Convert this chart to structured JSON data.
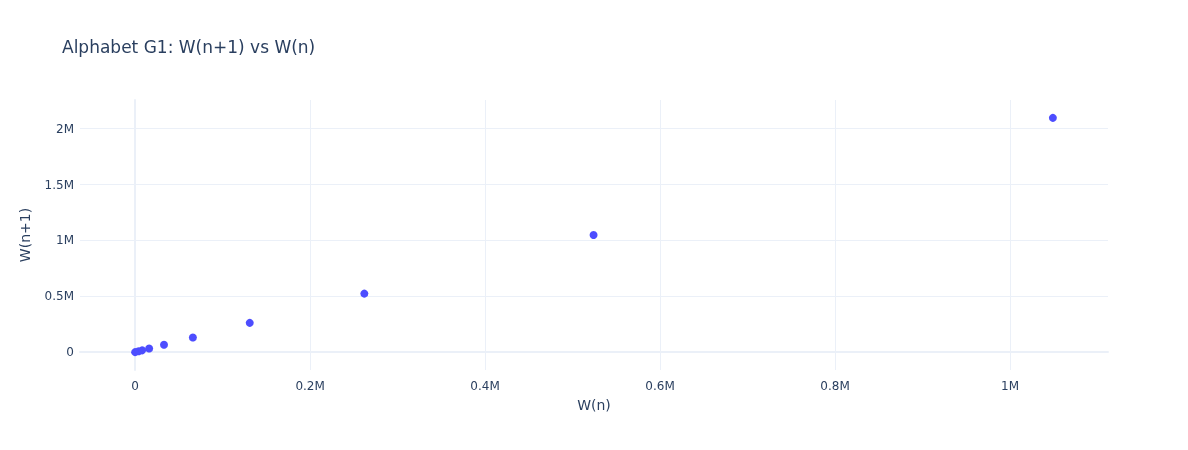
{
  "chart_data": {
    "type": "scatter",
    "title": "Alphabet G1: W(n+1) vs W(n)",
    "xlabel": "W(n)",
    "ylabel": "W(n+1)",
    "x": [
      0,
      4000,
      8000,
      16000,
      33000,
      66000,
      131000,
      262000,
      524000,
      1049000
    ],
    "series": [
      {
        "color": "#4d4dff",
        "values": [
          0,
          8000,
          16000,
          33000,
          66000,
          131000,
          262000,
          524000,
          1049000,
          2097000
        ]
      }
    ],
    "xlim": [
      -63000,
      1112000
    ],
    "ylim": [
      -160000,
      2257000
    ],
    "xticks": [
      0,
      {
        "value": 200000,
        "label": "0.2M"
      },
      {
        "value": 400000,
        "label": "0.4M"
      },
      {
        "value": 600000,
        "label": "0.6M"
      },
      {
        "value": 800000,
        "label": "0.8M"
      },
      {
        "value": 1000000,
        "label": "1M"
      }
    ],
    "yticks": [
      0,
      {
        "value": 500000,
        "label": "0.5M"
      },
      {
        "value": 1000000,
        "label": "1M"
      },
      {
        "value": 1500000,
        "label": "1.5M"
      },
      {
        "value": 2000000,
        "label": "2M"
      }
    ],
    "grid": true,
    "marker": "circle"
  }
}
